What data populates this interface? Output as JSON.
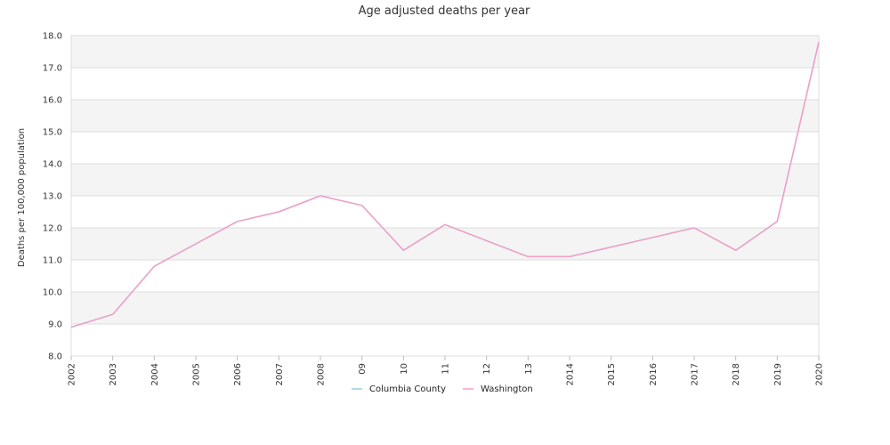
{
  "chart_data": {
    "type": "line",
    "title": "Age adjusted deaths per year",
    "xlabel": "",
    "ylabel": "Deaths per 100,000 population",
    "ylim": [
      8.0,
      18.0
    ],
    "yticks": [
      "8.0",
      "9.0",
      "10.0",
      "11.0",
      "12.0",
      "13.0",
      "14.0",
      "15.0",
      "16.0",
      "17.0",
      "18.0"
    ],
    "categories": [
      "2002",
      "2003",
      "2004",
      "2005",
      "2006",
      "2007",
      "2008",
      "09",
      "10",
      "11",
      "12",
      "13",
      "2014",
      "2015",
      "2016",
      "2017",
      "2018",
      "2019",
      "2020"
    ],
    "grid": true,
    "legend_position": "bottom",
    "series": [
      {
        "name": "Columbia County",
        "color": "#9ecae1",
        "values": [
          8.9,
          9.3,
          10.8,
          11.5,
          12.2,
          12.5,
          13.0,
          12.7,
          11.3,
          12.1,
          11.6,
          11.1,
          11.1,
          11.4,
          11.7,
          12.0,
          11.3,
          12.2,
          17.8
        ]
      },
      {
        "name": "Washington",
        "color": "#f29fc8",
        "values": [
          8.9,
          9.3,
          10.8,
          11.5,
          12.2,
          12.5,
          13.0,
          12.7,
          11.3,
          12.1,
          11.6,
          11.1,
          11.1,
          11.4,
          11.7,
          12.0,
          11.3,
          12.2,
          17.8
        ]
      }
    ]
  }
}
